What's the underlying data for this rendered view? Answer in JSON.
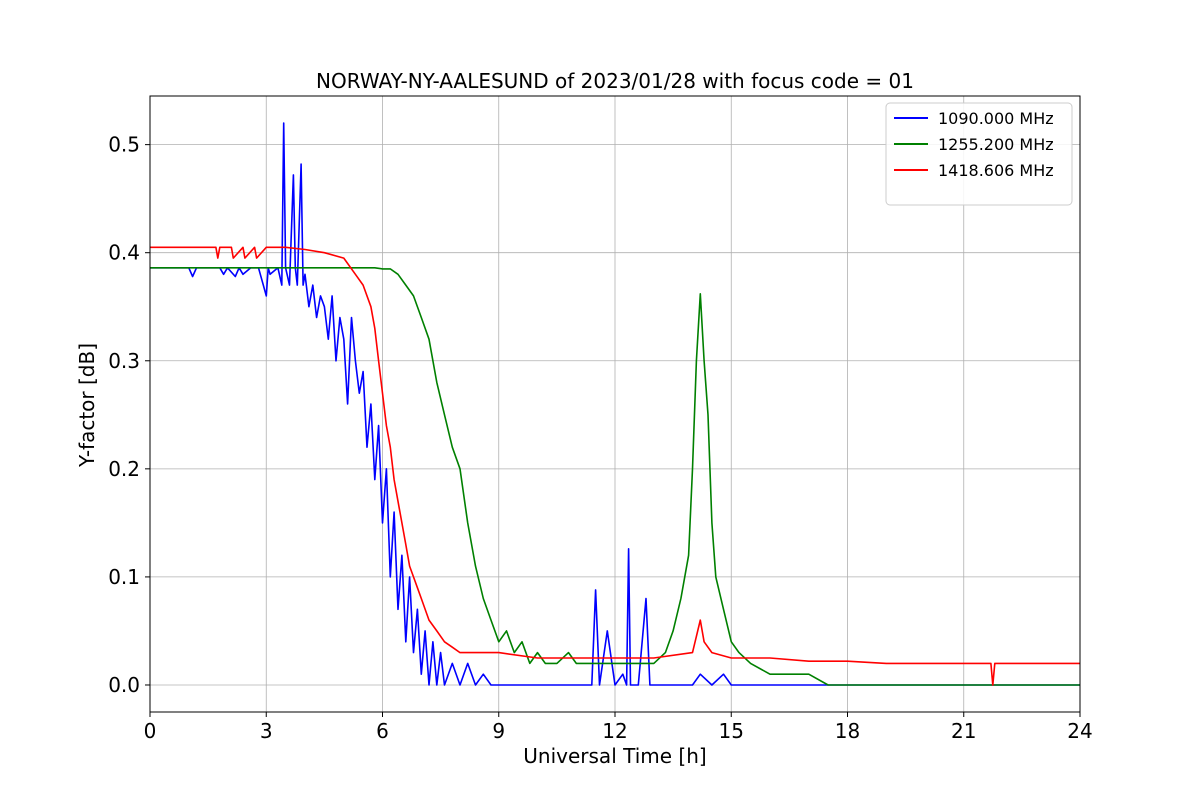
{
  "chart_data": {
    "type": "line",
    "title": "NORWAY-NY-AALESUND of 2023/01/28 with focus code = 01",
    "xlabel": "Universal Time [h]",
    "ylabel": "Y-factor [dB]",
    "xlim": [
      0,
      24
    ],
    "ylim": [
      -0.025,
      0.545
    ],
    "xticks": [
      0,
      3,
      6,
      9,
      12,
      15,
      18,
      21,
      24
    ],
    "yticks": [
      0.0,
      0.1,
      0.2,
      0.3,
      0.4,
      0.5
    ],
    "grid": true,
    "legend_position": "top-right",
    "series": [
      {
        "name": "1090.000 MHz",
        "color": "#0000ff",
        "x": [
          0,
          1.0,
          1.1,
          1.2,
          1.8,
          1.9,
          2.0,
          2.2,
          2.3,
          2.4,
          2.6,
          2.8,
          3.0,
          3.05,
          3.1,
          3.3,
          3.4,
          3.45,
          3.5,
          3.6,
          3.7,
          3.75,
          3.8,
          3.9,
          3.95,
          4.0,
          4.1,
          4.2,
          4.3,
          4.4,
          4.5,
          4.6,
          4.7,
          4.8,
          4.9,
          5.0,
          5.1,
          5.2,
          5.3,
          5.4,
          5.5,
          5.6,
          5.7,
          5.8,
          5.9,
          6.0,
          6.1,
          6.2,
          6.3,
          6.4,
          6.5,
          6.6,
          6.7,
          6.8,
          6.9,
          7.0,
          7.1,
          7.2,
          7.3,
          7.4,
          7.5,
          7.6,
          7.8,
          8.0,
          8.2,
          8.4,
          8.6,
          8.8,
          9.0,
          9.5,
          10.0,
          10.5,
          11.0,
          11.4,
          11.5,
          11.6,
          11.8,
          12.0,
          12.2,
          12.3,
          12.35,
          12.4,
          12.6,
          12.8,
          12.9,
          13.0,
          13.2,
          13.5,
          14.0,
          14.2,
          14.5,
          14.8,
          15.0,
          16.0,
          18.0,
          21.0,
          24.0
        ],
        "y": [
          0.386,
          0.386,
          0.378,
          0.386,
          0.386,
          0.38,
          0.386,
          0.378,
          0.386,
          0.38,
          0.386,
          0.386,
          0.36,
          0.386,
          0.38,
          0.386,
          0.37,
          0.52,
          0.386,
          0.37,
          0.472,
          0.386,
          0.37,
          0.482,
          0.37,
          0.38,
          0.35,
          0.37,
          0.34,
          0.36,
          0.35,
          0.32,
          0.36,
          0.3,
          0.34,
          0.32,
          0.26,
          0.34,
          0.3,
          0.27,
          0.29,
          0.22,
          0.26,
          0.19,
          0.24,
          0.15,
          0.2,
          0.1,
          0.16,
          0.07,
          0.12,
          0.04,
          0.1,
          0.03,
          0.07,
          0.01,
          0.05,
          0.0,
          0.04,
          0.0,
          0.03,
          0.0,
          0.02,
          0.0,
          0.02,
          0.0,
          0.01,
          0.0,
          0.0,
          0.0,
          0.0,
          0.0,
          0.0,
          0.0,
          0.088,
          0.0,
          0.05,
          0.0,
          0.01,
          0.0,
          0.126,
          0.0,
          0.0,
          0.08,
          0.0,
          0.0,
          0.0,
          0.0,
          0.0,
          0.01,
          0.0,
          0.01,
          0.0,
          0.0,
          0.0,
          0.0,
          0.0
        ]
      },
      {
        "name": "1255.200 MHz",
        "color": "#008000",
        "x": [
          0,
          5.0,
          5.5,
          5.8,
          6.0,
          6.2,
          6.4,
          6.6,
          6.8,
          7.0,
          7.2,
          7.4,
          7.6,
          7.8,
          8.0,
          8.2,
          8.4,
          8.6,
          8.8,
          9.0,
          9.2,
          9.4,
          9.6,
          9.8,
          10.0,
          10.2,
          10.5,
          10.8,
          11.0,
          11.5,
          12.0,
          12.5,
          13.0,
          13.3,
          13.5,
          13.7,
          13.9,
          14.0,
          14.1,
          14.2,
          14.3,
          14.4,
          14.5,
          14.6,
          14.8,
          15.0,
          15.2,
          15.5,
          16.0,
          16.5,
          17.0,
          17.5,
          18.0,
          19.0,
          20.0,
          21.0,
          24.0
        ],
        "y": [
          0.386,
          0.386,
          0.386,
          0.386,
          0.385,
          0.385,
          0.38,
          0.37,
          0.36,
          0.34,
          0.32,
          0.28,
          0.25,
          0.22,
          0.2,
          0.15,
          0.11,
          0.08,
          0.06,
          0.04,
          0.05,
          0.03,
          0.04,
          0.02,
          0.03,
          0.02,
          0.02,
          0.03,
          0.02,
          0.02,
          0.02,
          0.02,
          0.02,
          0.03,
          0.05,
          0.08,
          0.12,
          0.2,
          0.3,
          0.362,
          0.3,
          0.25,
          0.15,
          0.1,
          0.07,
          0.04,
          0.03,
          0.02,
          0.01,
          0.01,
          0.01,
          0.0,
          0.0,
          0.0,
          0.0,
          0.0,
          0.0
        ]
      },
      {
        "name": "1418.606 MHz",
        "color": "#ff0000",
        "x": [
          0,
          1.7,
          1.75,
          1.8,
          2.1,
          2.15,
          2.4,
          2.45,
          2.7,
          2.75,
          3.0,
          3.5,
          4.0,
          4.5,
          5.0,
          5.3,
          5.5,
          5.7,
          5.8,
          5.9,
          6.0,
          6.1,
          6.2,
          6.3,
          6.4,
          6.5,
          6.6,
          6.7,
          6.8,
          6.9,
          7.0,
          7.2,
          7.4,
          7.6,
          7.8,
          8.0,
          8.2,
          8.5,
          9.0,
          10.0,
          11.0,
          12.0,
          13.0,
          14.0,
          14.2,
          14.3,
          14.5,
          15.0,
          16.0,
          17.0,
          18.0,
          19.0,
          20.0,
          21.0,
          21.7,
          21.75,
          21.8,
          24.0
        ],
        "y": [
          0.405,
          0.405,
          0.395,
          0.405,
          0.405,
          0.395,
          0.405,
          0.395,
          0.405,
          0.395,
          0.405,
          0.405,
          0.403,
          0.4,
          0.395,
          0.38,
          0.37,
          0.35,
          0.33,
          0.3,
          0.27,
          0.24,
          0.22,
          0.19,
          0.17,
          0.15,
          0.13,
          0.11,
          0.1,
          0.09,
          0.08,
          0.06,
          0.05,
          0.04,
          0.035,
          0.03,
          0.03,
          0.03,
          0.03,
          0.025,
          0.025,
          0.025,
          0.025,
          0.03,
          0.06,
          0.04,
          0.03,
          0.025,
          0.025,
          0.022,
          0.022,
          0.02,
          0.02,
          0.02,
          0.02,
          0.0,
          0.02,
          0.02
        ]
      }
    ]
  }
}
